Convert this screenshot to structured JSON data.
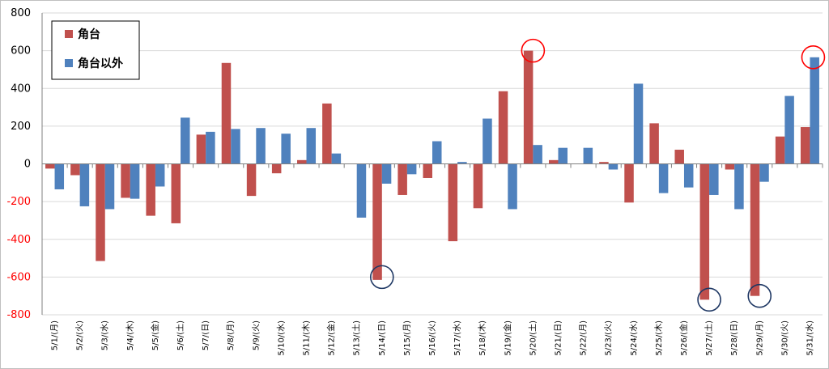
{
  "chart_data": {
    "type": "bar",
    "categories": [
      "5/1/(月)",
      "5/2/(火)",
      "5/3/(水)",
      "5/4/(木)",
      "5/5/(金)",
      "5/6/(土)",
      "5/7/(日)",
      "5/8/(月)",
      "5/9/(火)",
      "5/10/(水)",
      "5/11/(木)",
      "5/12/(金)",
      "5/13/(土)",
      "5/14/(日)",
      "5/15/(月)",
      "5/16/(火)",
      "5/17/(水)",
      "5/18/(木)",
      "5/19/(金)",
      "5/20/(土)",
      "5/21/(日)",
      "5/22/(月)",
      "5/23/(火)",
      "5/24/(水)",
      "5/25/(木)",
      "5/26/(金)",
      "5/27/(土)",
      "5/28/(日)",
      "5/29/(月)",
      "5/30/(火)",
      "5/31/(水)"
    ],
    "series": [
      {
        "name": "角台",
        "color": "#c0504d",
        "values": [
          -25,
          -60,
          -515,
          -180,
          -275,
          -315,
          155,
          535,
          -170,
          -50,
          20,
          320,
          0,
          -615,
          -165,
          -75,
          -410,
          -235,
          385,
          600,
          20,
          0,
          10,
          -205,
          215,
          75,
          -720,
          -30,
          -700,
          145,
          195
        ]
      },
      {
        "name": "角台以外",
        "color": "#4f81bd",
        "values": [
          -135,
          -225,
          -240,
          -185,
          -120,
          245,
          170,
          185,
          190,
          160,
          190,
          55,
          -285,
          -105,
          -55,
          120,
          10,
          240,
          -240,
          100,
          85,
          85,
          -30,
          425,
          -155,
          -125,
          -165,
          -240,
          -95,
          360,
          565
        ]
      }
    ],
    "ylim": [
      -800,
      800
    ],
    "yticks": [
      -800,
      -600,
      -400,
      -200,
      0,
      200,
      400,
      600,
      800
    ],
    "tick_colors": {
      "positive": "#000000",
      "negative": "#ff0000"
    },
    "legend_position": "top-left",
    "grid": true,
    "annotations": [
      {
        "type": "circle",
        "category": "5/14/(日)",
        "value": -600,
        "color": "#1f3864"
      },
      {
        "type": "circle",
        "category": "5/20/(土)",
        "value": 600,
        "color": "#ff0000"
      },
      {
        "type": "circle",
        "category": "5/27/(土)",
        "value": -720,
        "color": "#1f3864"
      },
      {
        "type": "circle",
        "category": "5/29/(月)",
        "value": -700,
        "color": "#1f3864"
      },
      {
        "type": "circle",
        "category": "5/31/(水)",
        "value": 565,
        "color": "#ff0000"
      }
    ]
  }
}
